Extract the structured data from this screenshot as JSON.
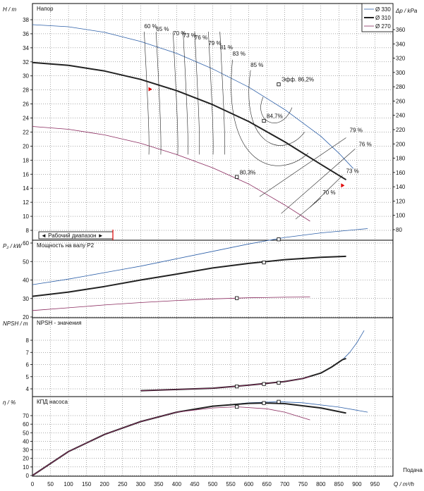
{
  "colors": {
    "d330": "#2c5fa8",
    "d310": "#222222",
    "d270": "#8a2a5e",
    "grid": "#555555",
    "range": "#e00000"
  },
  "legend": [
    "Ø 330",
    "Ø 310",
    "Ø 270"
  ],
  "range_label": "◄ Рабочий диапазон ►",
  "x_axis": {
    "label": "Q / m³/h",
    "corner_label": "Подача",
    "ticks": [
      "0",
      "50",
      "100",
      "150",
      "200",
      "250",
      "300",
      "350",
      "400",
      "450",
      "500",
      "550",
      "600",
      "650",
      "700",
      "750",
      "800",
      "850",
      "900",
      "950"
    ],
    "min": 0,
    "max": 1000
  },
  "chart_data": [
    {
      "id": "head",
      "type": "line",
      "title": "Напор",
      "ylabel": "H / m",
      "ylabel_right": "Δp / kPa",
      "ylim": [
        7,
        39
      ],
      "yticks": [
        "8",
        "10",
        "12",
        "14",
        "16",
        "18",
        "20",
        "22",
        "24",
        "26",
        "28",
        "30",
        "32",
        "34",
        "36",
        "38"
      ],
      "yticks_right": [
        "80",
        "100",
        "120",
        "140",
        "160",
        "180",
        "200",
        "220",
        "240",
        "260",
        "280",
        "300",
        "320",
        "340",
        "360"
      ],
      "series": [
        {
          "name": "Ø 330",
          "x": [
            0,
            100,
            200,
            300,
            400,
            500,
            600,
            700,
            800,
            850,
            890
          ],
          "y": [
            37.3,
            37.0,
            36.2,
            34.9,
            33.2,
            31.0,
            28.4,
            25.2,
            21.4,
            19.0,
            16.8
          ]
        },
        {
          "name": "Ø 310",
          "x": [
            0,
            100,
            200,
            300,
            400,
            500,
            600,
            700,
            800,
            870
          ],
          "y": [
            31.9,
            31.5,
            30.7,
            29.5,
            27.9,
            25.9,
            23.5,
            20.6,
            17.4,
            15.2
          ]
        },
        {
          "name": "Ø 270",
          "x": [
            0,
            100,
            200,
            300,
            400,
            500,
            600,
            700,
            770
          ],
          "y": [
            22.8,
            22.4,
            21.6,
            20.4,
            18.8,
            16.9,
            14.6,
            11.6,
            9.3
          ]
        }
      ],
      "points": [
        {
          "name": "Эфф. 86,2%",
          "x": 683,
          "y": 28.8
        },
        {
          "name": "84,7%",
          "x": 642,
          "y": 23.6
        },
        {
          "name": "80,3%",
          "x": 567,
          "y": 15.6
        }
      ],
      "efficiency_labels": [
        {
          "text": "60 %",
          "x": 310,
          "y": 36.8
        },
        {
          "text": "65 %",
          "x": 343,
          "y": 36.4
        },
        {
          "text": "70 %",
          "x": 390,
          "y": 35.8
        },
        {
          "text": "73 %",
          "x": 418,
          "y": 35.5
        },
        {
          "text": "76 %",
          "x": 450,
          "y": 35.2
        },
        {
          "text": "79 %",
          "x": 488,
          "y": 34.4
        },
        {
          "text": "81 %",
          "x": 520,
          "y": 33.8
        },
        {
          "text": "83 %",
          "x": 555,
          "y": 32.9
        },
        {
          "text": "85 %",
          "x": 605,
          "y": 31.3
        },
        {
          "text": "79 %",
          "x": 880,
          "y": 22.0
        },
        {
          "text": "76 %",
          "x": 905,
          "y": 20.0
        },
        {
          "text": "73 %",
          "x": 870,
          "y": 16.2
        },
        {
          "text": "70 %",
          "x": 805,
          "y": 13.1
        }
      ]
    },
    {
      "id": "power",
      "type": "line",
      "title": "Мощность на валу P2",
      "ylabel": "P₂ / kW",
      "ylim": [
        20,
        70
      ],
      "yticks": [
        "20",
        "30",
        "40",
        "50",
        "60"
      ],
      "series": [
        {
          "name": "Ø 330",
          "x": [
            0,
            100,
            200,
            300,
            400,
            500,
            600,
            700,
            800,
            930
          ],
          "y": [
            37.5,
            40.5,
            44.0,
            47.5,
            51.5,
            55.5,
            59.5,
            63.0,
            65.5,
            67.8
          ]
        },
        {
          "name": "Ø 310",
          "x": [
            0,
            100,
            200,
            300,
            400,
            500,
            600,
            700,
            800,
            870
          ],
          "y": [
            31.2,
            33.5,
            36.5,
            40.0,
            43.2,
            46.5,
            49.0,
            51.0,
            52.3,
            52.8
          ]
        },
        {
          "name": "Ø 270",
          "x": [
            0,
            100,
            200,
            300,
            400,
            500,
            600,
            700,
            770
          ],
          "y": [
            23.5,
            25.0,
            26.5,
            27.8,
            28.9,
            29.8,
            30.4,
            30.7,
            30.8
          ]
        }
      ],
      "points": [
        {
          "name": "Ø 330",
          "x": 683,
          "y": 62.0
        },
        {
          "name": "Ø 310",
          "x": 642,
          "y": 49.5
        },
        {
          "name": "Ø 270",
          "x": 567,
          "y": 30.2
        }
      ]
    },
    {
      "id": "npsh",
      "type": "line",
      "title": "NPSH - значения",
      "ylabel": "NPSH / m",
      "ylim": [
        3.5,
        9.5
      ],
      "yticks": [
        "4",
        "5",
        "6",
        "7",
        "8"
      ],
      "series": [
        {
          "name": "Ø 330",
          "x": [
            300,
            400,
            500,
            600,
            700,
            750,
            800,
            830,
            860,
            880,
            900,
            920
          ],
          "y": [
            3.85,
            3.95,
            4.05,
            4.3,
            4.6,
            4.85,
            5.3,
            5.8,
            6.4,
            7.0,
            7.8,
            8.8
          ]
        },
        {
          "name": "Ø 310",
          "x": [
            300,
            400,
            500,
            600,
            700,
            750,
            800,
            830,
            860,
            870
          ],
          "y": [
            3.85,
            3.95,
            4.05,
            4.3,
            4.6,
            4.85,
            5.3,
            5.8,
            6.4,
            6.5
          ]
        },
        {
          "name": "Ø 270",
          "x": [
            300,
            400,
            500,
            600,
            700,
            750,
            770
          ],
          "y": [
            3.85,
            3.95,
            4.05,
            4.3,
            4.6,
            4.85,
            5.0
          ]
        }
      ],
      "points": [
        {
          "name": "Ø 330",
          "x": 683,
          "y": 4.5
        },
        {
          "name": "Ø 310",
          "x": 642,
          "y": 4.4
        },
        {
          "name": "Ø 270",
          "x": 567,
          "y": 4.2
        }
      ]
    },
    {
      "id": "eff",
      "type": "line",
      "title": "КПД насоса",
      "ylabel": "η / %",
      "ylim": [
        0,
        90
      ],
      "yticks": [
        "0",
        "10",
        "20",
        "30",
        "40",
        "50",
        "60",
        "70"
      ],
      "series": [
        {
          "name": "Ø 330",
          "x": [
            0,
            100,
            200,
            300,
            400,
            500,
            600,
            683,
            750,
            850,
            930
          ],
          "y": [
            0,
            28,
            48,
            63,
            74,
            81,
            85,
            86.2,
            85,
            80,
            74
          ]
        },
        {
          "name": "Ø 310",
          "x": [
            0,
            100,
            200,
            300,
            400,
            500,
            600,
            642,
            700,
            800,
            870
          ],
          "y": [
            0,
            28,
            48,
            63,
            74,
            81,
            84.3,
            84.7,
            84,
            79,
            73
          ]
        },
        {
          "name": "Ø 270",
          "x": [
            0,
            100,
            200,
            300,
            400,
            500,
            567,
            650,
            700,
            770
          ],
          "y": [
            0,
            28,
            48,
            63,
            74,
            79,
            80.3,
            78,
            74,
            65
          ]
        }
      ],
      "points": [
        {
          "name": "Ø 330",
          "x": 683,
          "y": 86.2
        },
        {
          "name": "Ø 310",
          "x": 642,
          "y": 84.7
        },
        {
          "name": "Ø 270",
          "x": 567,
          "y": 80.3
        }
      ]
    }
  ]
}
